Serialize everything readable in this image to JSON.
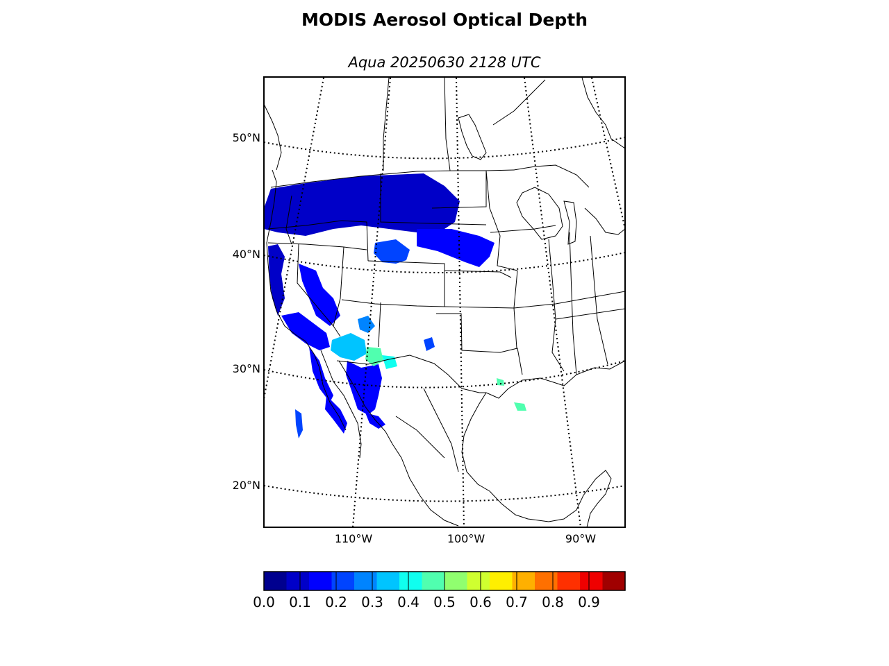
{
  "title": "MODIS Aerosol Optical Depth",
  "subtitle": "Aqua 20250630 2128 UTC",
  "map": {
    "extent": {
      "lon": [
        -118,
        -87
      ],
      "lat": [
        16,
        55
      ]
    },
    "lat_labels": [
      "50°N",
      "40°N",
      "30°N",
      "20°N"
    ],
    "lon_labels": [
      "110°W",
      "100°W",
      "90°W"
    ]
  },
  "colorbar": {
    "colormap": "jet",
    "range": [
      0.0,
      1.0
    ],
    "labels": [
      "0.0",
      "0.1",
      "0.2",
      "0.3",
      "0.4",
      "0.5",
      "0.6",
      "0.7",
      "0.8",
      "0.9"
    ],
    "colors": [
      "#00008f",
      "#0000c8",
      "#0000ff",
      "#0044ff",
      "#0084ff",
      "#00c4ff",
      "#10ffef",
      "#50ffaf",
      "#90ff6f",
      "#cfff30",
      "#ffef00",
      "#ffb000",
      "#ff7000",
      "#ff3000",
      "#ef0000",
      "#a00000"
    ]
  },
  "chart_data": {
    "type": "heatmap",
    "quantity": "aerosol optical depth",
    "range": [
      0.0,
      1.0
    ],
    "regions": [
      {
        "value": 0.12
      },
      {
        "value": 0.15
      },
      {
        "value": 0.12
      },
      {
        "value": 0.14
      },
      {
        "value": 0.14
      },
      {
        "value": 0.16
      },
      {
        "value": 0.13
      },
      {
        "value": 0.18
      },
      {
        "value": 0.18
      },
      {
        "value": 0.2
      },
      {
        "value": 0.22
      },
      {
        "value": 0.28
      },
      {
        "value": 0.36
      },
      {
        "value": 0.45
      },
      {
        "value": 0.4
      },
      {
        "value": 0.48
      },
      {
        "value": 0.47
      },
      {
        "value": 0.22
      }
    ]
  }
}
